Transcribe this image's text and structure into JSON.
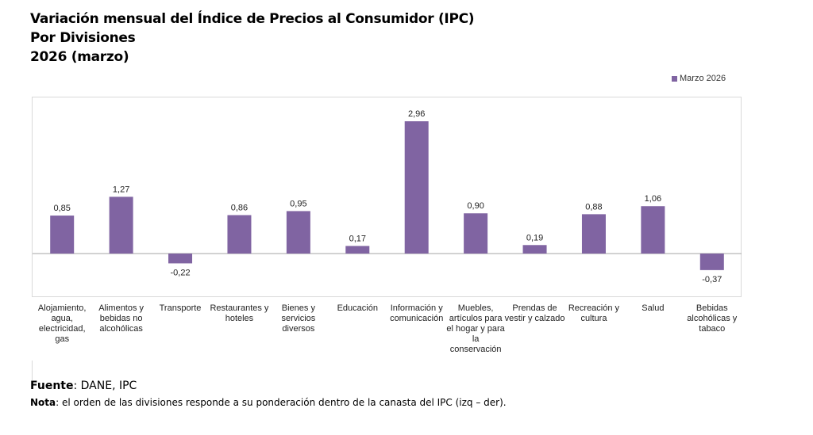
{
  "chart_data": {
    "type": "bar",
    "title": [
      "Variación mensual del Índice de Precios al Consumidor (IPC)",
      "Por Divisiones",
      "2026 (marzo)"
    ],
    "categories": [
      "Alojamiento, agua, electricidad, gas",
      "Alimentos y bebidas no alcohólicas",
      "Transporte",
      "Restaurantes y hoteles",
      "Bienes y servicios diversos",
      "Educación",
      "Información y comunicación",
      "Muebles, artículos para el hogar y para la conservación",
      "Prendas de vestir y calzado",
      "Recreación y cultura",
      "Salud",
      "Bebidas alcohólicas y tabaco"
    ],
    "series": [
      {
        "name": "Marzo 2026",
        "values": [
          0.85,
          1.27,
          -0.22,
          0.86,
          0.95,
          0.17,
          2.96,
          0.9,
          0.19,
          0.88,
          1.06,
          -0.37
        ],
        "labels": [
          "0,85",
          "1,27",
          "-0,22",
          "0,86",
          "0,95",
          "0,17",
          "2,96",
          "0,90",
          "0,19",
          "0,88",
          "1,06",
          "-0,37"
        ]
      }
    ],
    "color": "#8064a2",
    "legend_position": "top-right",
    "grid": false,
    "xlabel": "",
    "ylabel": ""
  },
  "footer": {
    "source_label": "Fuente",
    "source_text": ": DANE, IPC",
    "note_label": "Nota",
    "note_text": ": el orden de las divisiones responde a su ponderación dentro de la canasta del IPC (izq – der)."
  }
}
